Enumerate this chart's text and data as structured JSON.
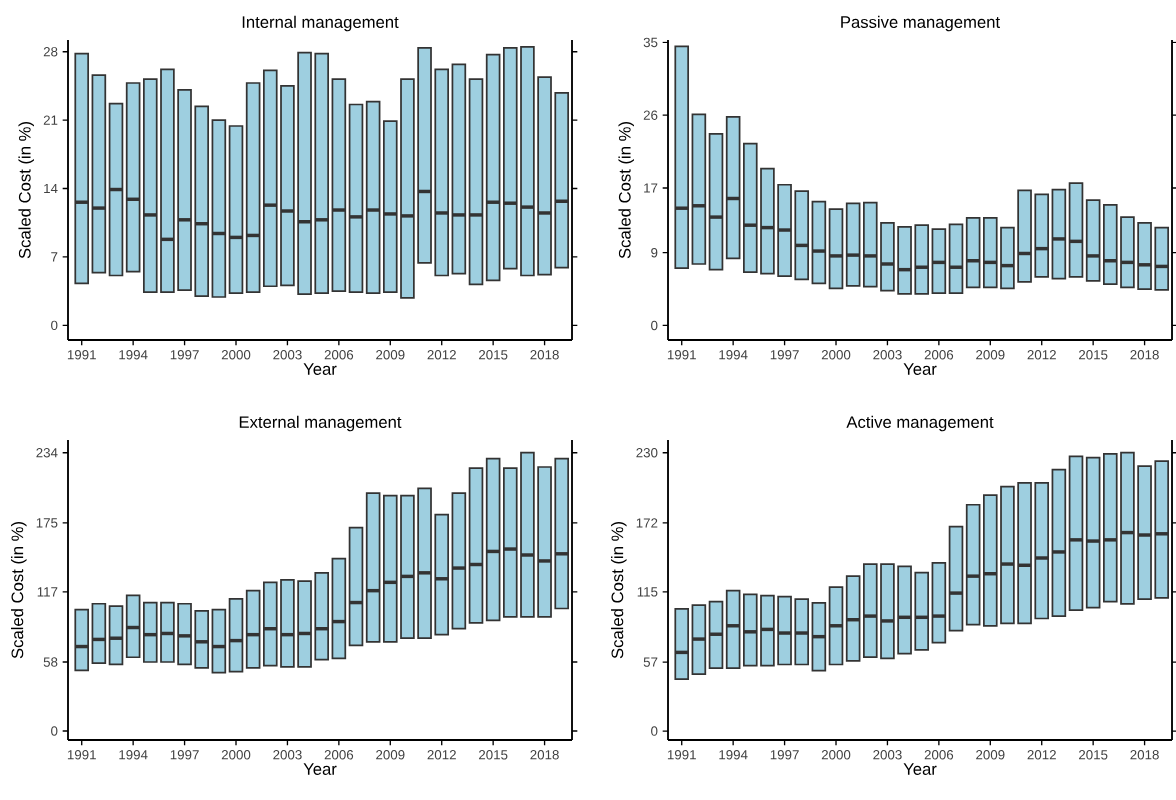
{
  "chart_data": [
    {
      "type": "box",
      "title": "Internal management",
      "xlabel": "Year",
      "ylabel": "Scaled Cost (in %)",
      "color": "#9ecfe0",
      "categories": [
        "1991",
        null,
        null,
        "1994",
        null,
        null,
        "1997",
        null,
        null,
        "2000",
        null,
        null,
        "2003",
        null,
        null,
        "2006",
        null,
        null,
        "2009",
        null,
        null,
        "2012",
        null,
        null,
        "2015",
        null,
        null,
        "2018",
        null
      ],
      "ylim": [
        -1.5,
        29.2
      ],
      "yticks": [
        0,
        7,
        14,
        21,
        28
      ],
      "boxes": [
        {
          "low": 4.3,
          "q1": 4.3,
          "median": 12.6,
          "q3": 27.8,
          "high": 27.8
        },
        {
          "low": 5.4,
          "q1": 5.4,
          "median": 12.0,
          "q3": 25.6,
          "high": 25.6
        },
        {
          "low": 5.1,
          "q1": 5.1,
          "median": 13.9,
          "q3": 22.7,
          "high": 22.7
        },
        {
          "low": 5.5,
          "q1": 5.5,
          "median": 12.9,
          "q3": 24.8,
          "high": 24.8
        },
        {
          "low": 3.4,
          "q1": 3.4,
          "median": 11.3,
          "q3": 25.2,
          "high": 25.2
        },
        {
          "low": 3.4,
          "q1": 3.4,
          "median": 8.8,
          "q3": 26.2,
          "high": 26.2
        },
        {
          "low": 3.6,
          "q1": 3.6,
          "median": 10.8,
          "q3": 24.1,
          "high": 24.1
        },
        {
          "low": 3.0,
          "q1": 3.0,
          "median": 10.4,
          "q3": 22.4,
          "high": 22.4
        },
        {
          "low": 2.9,
          "q1": 2.9,
          "median": 9.4,
          "q3": 21.0,
          "high": 21.0
        },
        {
          "low": 3.3,
          "q1": 3.3,
          "median": 9.0,
          "q3": 20.4,
          "high": 20.4
        },
        {
          "low": 3.4,
          "q1": 3.4,
          "median": 9.2,
          "q3": 24.8,
          "high": 24.8
        },
        {
          "low": 4.0,
          "q1": 4.0,
          "median": 12.3,
          "q3": 26.1,
          "high": 26.1
        },
        {
          "low": 4.1,
          "q1": 4.1,
          "median": 11.7,
          "q3": 24.5,
          "high": 24.5
        },
        {
          "low": 3.2,
          "q1": 3.2,
          "median": 10.6,
          "q3": 27.9,
          "high": 27.9
        },
        {
          "low": 3.3,
          "q1": 3.3,
          "median": 10.8,
          "q3": 27.8,
          "high": 27.8
        },
        {
          "low": 3.5,
          "q1": 3.5,
          "median": 11.8,
          "q3": 25.2,
          "high": 25.2
        },
        {
          "low": 3.4,
          "q1": 3.4,
          "median": 11.1,
          "q3": 22.6,
          "high": 22.6
        },
        {
          "low": 3.3,
          "q1": 3.3,
          "median": 11.8,
          "q3": 22.9,
          "high": 22.9
        },
        {
          "low": 3.4,
          "q1": 3.4,
          "median": 11.4,
          "q3": 20.9,
          "high": 20.9
        },
        {
          "low": 2.8,
          "q1": 2.8,
          "median": 11.2,
          "q3": 25.2,
          "high": 25.2
        },
        {
          "low": 6.4,
          "q1": 6.4,
          "median": 13.7,
          "q3": 28.4,
          "high": 28.4
        },
        {
          "low": 5.1,
          "q1": 5.1,
          "median": 11.5,
          "q3": 26.2,
          "high": 26.2
        },
        {
          "low": 5.3,
          "q1": 5.3,
          "median": 11.3,
          "q3": 26.7,
          "high": 26.7
        },
        {
          "low": 4.2,
          "q1": 4.2,
          "median": 11.3,
          "q3": 25.2,
          "high": 25.2
        },
        {
          "low": 4.6,
          "q1": 4.6,
          "median": 12.6,
          "q3": 27.7,
          "high": 27.7
        },
        {
          "low": 5.8,
          "q1": 5.8,
          "median": 12.5,
          "q3": 28.4,
          "high": 28.4
        },
        {
          "low": 5.1,
          "q1": 5.1,
          "median": 12.1,
          "q3": 28.5,
          "high": 28.5
        },
        {
          "low": 5.2,
          "q1": 5.2,
          "median": 11.5,
          "q3": 25.4,
          "high": 25.4
        },
        {
          "low": 5.9,
          "q1": 5.9,
          "median": 12.7,
          "q3": 23.8,
          "high": 23.8
        }
      ]
    },
    {
      "type": "box",
      "title": "Passive management",
      "xlabel": "Year",
      "ylabel": "Scaled Cost (in %)",
      "color": "#9ecfe0",
      "categories": [
        "1991",
        null,
        null,
        "1994",
        null,
        null,
        "1997",
        null,
        null,
        "2000",
        null,
        null,
        "2003",
        null,
        null,
        "2006",
        null,
        null,
        "2009",
        null,
        null,
        "2012",
        null,
        null,
        "2015",
        null,
        null,
        "2018",
        null
      ],
      "ylim": [
        -1.8,
        35.3
      ],
      "yticks": [
        0,
        9,
        17,
        26,
        35
      ],
      "boxes": [
        {
          "low": 7.1,
          "q1": 7.1,
          "median": 14.5,
          "q3": 34.5,
          "high": 34.5
        },
        {
          "low": 7.6,
          "q1": 7.6,
          "median": 14.8,
          "q3": 26.1,
          "high": 26.1
        },
        {
          "low": 6.9,
          "q1": 6.9,
          "median": 13.4,
          "q3": 23.7,
          "high": 23.7
        },
        {
          "low": 8.3,
          "q1": 8.3,
          "median": 15.7,
          "q3": 25.8,
          "high": 25.8
        },
        {
          "low": 6.6,
          "q1": 6.6,
          "median": 12.4,
          "q3": 22.5,
          "high": 22.5
        },
        {
          "low": 6.4,
          "q1": 6.4,
          "median": 12.1,
          "q3": 19.4,
          "high": 19.4
        },
        {
          "low": 6.1,
          "q1": 6.1,
          "median": 11.8,
          "q3": 17.4,
          "high": 17.4
        },
        {
          "low": 5.7,
          "q1": 5.7,
          "median": 9.9,
          "q3": 16.6,
          "high": 16.6
        },
        {
          "low": 5.2,
          "q1": 5.2,
          "median": 9.2,
          "q3": 15.3,
          "high": 15.3
        },
        {
          "low": 4.6,
          "q1": 4.6,
          "median": 8.6,
          "q3": 14.4,
          "high": 14.4
        },
        {
          "low": 4.9,
          "q1": 4.9,
          "median": 8.7,
          "q3": 15.1,
          "high": 15.1
        },
        {
          "low": 4.8,
          "q1": 4.8,
          "median": 8.6,
          "q3": 15.2,
          "high": 15.2
        },
        {
          "low": 4.3,
          "q1": 4.3,
          "median": 7.6,
          "q3": 12.7,
          "high": 12.7
        },
        {
          "low": 3.9,
          "q1": 3.9,
          "median": 6.9,
          "q3": 12.2,
          "high": 12.2
        },
        {
          "low": 3.9,
          "q1": 3.9,
          "median": 7.2,
          "q3": 12.4,
          "high": 12.4
        },
        {
          "low": 4.0,
          "q1": 4.0,
          "median": 7.8,
          "q3": 11.9,
          "high": 11.9
        },
        {
          "low": 4.0,
          "q1": 4.0,
          "median": 7.2,
          "q3": 12.5,
          "high": 12.5
        },
        {
          "low": 4.7,
          "q1": 4.7,
          "median": 8.0,
          "q3": 13.3,
          "high": 13.3
        },
        {
          "low": 4.7,
          "q1": 4.7,
          "median": 7.8,
          "q3": 13.3,
          "high": 13.3
        },
        {
          "low": 4.6,
          "q1": 4.6,
          "median": 7.4,
          "q3": 12.1,
          "high": 12.1
        },
        {
          "low": 5.4,
          "q1": 5.4,
          "median": 8.9,
          "q3": 16.7,
          "high": 16.7
        },
        {
          "low": 6.0,
          "q1": 6.0,
          "median": 9.5,
          "q3": 16.2,
          "high": 16.2
        },
        {
          "low": 5.8,
          "q1": 5.8,
          "median": 10.7,
          "q3": 16.8,
          "high": 16.8
        },
        {
          "low": 6.0,
          "q1": 6.0,
          "median": 10.4,
          "q3": 17.6,
          "high": 17.6
        },
        {
          "low": 5.5,
          "q1": 5.5,
          "median": 8.6,
          "q3": 15.5,
          "high": 15.5
        },
        {
          "low": 5.1,
          "q1": 5.1,
          "median": 8.0,
          "q3": 14.9,
          "high": 14.9
        },
        {
          "low": 4.7,
          "q1": 4.7,
          "median": 7.8,
          "q3": 13.4,
          "high": 13.4
        },
        {
          "low": 4.5,
          "q1": 4.5,
          "median": 7.5,
          "q3": 12.7,
          "high": 12.7
        },
        {
          "low": 4.4,
          "q1": 4.4,
          "median": 7.3,
          "q3": 12.1,
          "high": 12.1
        }
      ]
    },
    {
      "type": "box",
      "title": "External management",
      "xlabel": "Year",
      "ylabel": "Scaled Cost (in %)",
      "color": "#9ecfe0",
      "categories": [
        "1991",
        null,
        null,
        "1994",
        null,
        null,
        "1997",
        null,
        null,
        "2000",
        null,
        null,
        "2003",
        null,
        null,
        "2006",
        null,
        null,
        "2009",
        null,
        null,
        "2012",
        null,
        null,
        "2015",
        null,
        null,
        "2018",
        null
      ],
      "ylim": [
        -7.6,
        244.7
      ],
      "yticks": [
        0,
        58,
        117,
        175,
        234
      ],
      "boxes": [
        {
          "low": 51,
          "q1": 51,
          "median": 71,
          "q3": 102,
          "high": 102
        },
        {
          "low": 57,
          "q1": 57,
          "median": 77,
          "q3": 107,
          "high": 107
        },
        {
          "low": 56,
          "q1": 56,
          "median": 78,
          "q3": 105,
          "high": 105
        },
        {
          "low": 62,
          "q1": 62,
          "median": 87,
          "q3": 114,
          "high": 114
        },
        {
          "low": 58,
          "q1": 58,
          "median": 81,
          "q3": 108,
          "high": 108
        },
        {
          "low": 58,
          "q1": 58,
          "median": 82,
          "q3": 108,
          "high": 108
        },
        {
          "low": 56,
          "q1": 56,
          "median": 80,
          "q3": 107,
          "high": 107
        },
        {
          "low": 53,
          "q1": 53,
          "median": 75,
          "q3": 101,
          "high": 101
        },
        {
          "low": 49,
          "q1": 49,
          "median": 71,
          "q3": 102,
          "high": 102
        },
        {
          "low": 50,
          "q1": 50,
          "median": 76,
          "q3": 111,
          "high": 111
        },
        {
          "low": 53,
          "q1": 53,
          "median": 81,
          "q3": 118,
          "high": 118
        },
        {
          "low": 55,
          "q1": 55,
          "median": 86,
          "q3": 125,
          "high": 125
        },
        {
          "low": 54,
          "q1": 54,
          "median": 81,
          "q3": 127,
          "high": 127
        },
        {
          "low": 54,
          "q1": 54,
          "median": 82,
          "q3": 126,
          "high": 126
        },
        {
          "low": 60,
          "q1": 60,
          "median": 86,
          "q3": 133,
          "high": 133
        },
        {
          "low": 61,
          "q1": 61,
          "median": 92,
          "q3": 145,
          "high": 145
        },
        {
          "low": 72,
          "q1": 72,
          "median": 108,
          "q3": 171,
          "high": 171
        },
        {
          "low": 75,
          "q1": 75,
          "median": 118,
          "q3": 200,
          "high": 200
        },
        {
          "low": 75,
          "q1": 75,
          "median": 125,
          "q3": 198,
          "high": 198
        },
        {
          "low": 78,
          "q1": 78,
          "median": 130,
          "q3": 198,
          "high": 198
        },
        {
          "low": 78,
          "q1": 78,
          "median": 133,
          "q3": 204,
          "high": 204
        },
        {
          "low": 81,
          "q1": 81,
          "median": 128,
          "q3": 182,
          "high": 182
        },
        {
          "low": 86,
          "q1": 86,
          "median": 137,
          "q3": 200,
          "high": 200
        },
        {
          "low": 91,
          "q1": 91,
          "median": 140,
          "q3": 221,
          "high": 221
        },
        {
          "low": 93,
          "q1": 93,
          "median": 151,
          "q3": 229,
          "high": 229
        },
        {
          "low": 96,
          "q1": 96,
          "median": 153,
          "q3": 221,
          "high": 221
        },
        {
          "low": 96,
          "q1": 96,
          "median": 148,
          "q3": 234,
          "high": 234
        },
        {
          "low": 96,
          "q1": 96,
          "median": 143,
          "q3": 222,
          "high": 222
        },
        {
          "low": 103,
          "q1": 103,
          "median": 149,
          "q3": 229,
          "high": 229
        }
      ]
    },
    {
      "type": "box",
      "title": "Active management",
      "xlabel": "Year",
      "ylabel": "Scaled Cost (in %)",
      "color": "#9ecfe0",
      "categories": [
        "1991",
        null,
        null,
        "1994",
        null,
        null,
        "1997",
        null,
        null,
        "2000",
        null,
        null,
        "2003",
        null,
        null,
        "2006",
        null,
        null,
        "2009",
        null,
        null,
        "2012",
        null,
        null,
        "2015",
        null,
        null,
        "2018",
        null
      ],
      "ylim": [
        -7.4,
        240.5
      ],
      "yticks": [
        0,
        57,
        115,
        172,
        230
      ],
      "boxes": [
        {
          "low": 43,
          "q1": 43,
          "median": 65,
          "q3": 101,
          "high": 101
        },
        {
          "low": 47,
          "q1": 47,
          "median": 76,
          "q3": 104,
          "high": 104
        },
        {
          "low": 52,
          "q1": 52,
          "median": 80,
          "q3": 107,
          "high": 107
        },
        {
          "low": 52,
          "q1": 52,
          "median": 87,
          "q3": 116,
          "high": 116
        },
        {
          "low": 54,
          "q1": 54,
          "median": 82,
          "q3": 113,
          "high": 113
        },
        {
          "low": 54,
          "q1": 54,
          "median": 84,
          "q3": 112,
          "high": 112
        },
        {
          "low": 55,
          "q1": 55,
          "median": 81,
          "q3": 111,
          "high": 111
        },
        {
          "low": 55,
          "q1": 55,
          "median": 81,
          "q3": 109,
          "high": 109
        },
        {
          "low": 50,
          "q1": 50,
          "median": 78,
          "q3": 106,
          "high": 106
        },
        {
          "low": 55,
          "q1": 55,
          "median": 87,
          "q3": 119,
          "high": 119
        },
        {
          "low": 58,
          "q1": 58,
          "median": 92,
          "q3": 128,
          "high": 128
        },
        {
          "low": 61,
          "q1": 61,
          "median": 95,
          "q3": 138,
          "high": 138
        },
        {
          "low": 60,
          "q1": 60,
          "median": 91,
          "q3": 138,
          "high": 138
        },
        {
          "low": 64,
          "q1": 64,
          "median": 94,
          "q3": 136,
          "high": 136
        },
        {
          "low": 67,
          "q1": 67,
          "median": 94,
          "q3": 131,
          "high": 131
        },
        {
          "low": 73,
          "q1": 73,
          "median": 95,
          "q3": 139,
          "high": 139
        },
        {
          "low": 83,
          "q1": 83,
          "median": 114,
          "q3": 169,
          "high": 169
        },
        {
          "low": 88,
          "q1": 88,
          "median": 128,
          "q3": 187,
          "high": 187
        },
        {
          "low": 87,
          "q1": 87,
          "median": 130,
          "q3": 195,
          "high": 195
        },
        {
          "low": 89,
          "q1": 89,
          "median": 138,
          "q3": 202,
          "high": 202
        },
        {
          "low": 89,
          "q1": 89,
          "median": 137,
          "q3": 205,
          "high": 205
        },
        {
          "low": 93,
          "q1": 93,
          "median": 143,
          "q3": 205,
          "high": 205
        },
        {
          "low": 95,
          "q1": 95,
          "median": 148,
          "q3": 216,
          "high": 216
        },
        {
          "low": 100,
          "q1": 100,
          "median": 158,
          "q3": 227,
          "high": 227
        },
        {
          "low": 102,
          "q1": 102,
          "median": 157,
          "q3": 226,
          "high": 226
        },
        {
          "low": 107,
          "q1": 107,
          "median": 158,
          "q3": 229,
          "high": 229
        },
        {
          "low": 105,
          "q1": 105,
          "median": 164,
          "q3": 230,
          "high": 230
        },
        {
          "low": 109,
          "q1": 109,
          "median": 162,
          "q3": 219,
          "high": 219
        },
        {
          "low": 110,
          "q1": 110,
          "median": 163,
          "q3": 223,
          "high": 223
        }
      ]
    }
  ]
}
